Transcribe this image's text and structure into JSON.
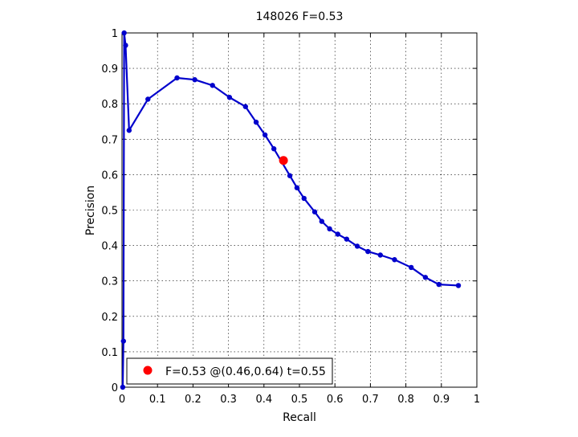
{
  "chart_data": {
    "type": "line",
    "title": "148026 F=0.53",
    "xlabel": "Recall",
    "ylabel": "Precision",
    "xlim": [
      0,
      1
    ],
    "ylim": [
      0,
      1
    ],
    "xticks": [
      0,
      0.1,
      0.2,
      0.3,
      0.4,
      0.5,
      0.6,
      0.7,
      0.8,
      0.9,
      1
    ],
    "yticks": [
      0,
      0.1,
      0.2,
      0.3,
      0.4,
      0.5,
      0.6,
      0.7,
      0.8,
      0.9,
      1
    ],
    "xtick_labels": [
      "0",
      "0.1",
      "0.2",
      "0.3",
      "0.4",
      "0.5",
      "0.6",
      "0.7",
      "0.8",
      "0.9",
      "1"
    ],
    "ytick_labels": [
      "0",
      "0.1",
      "0.2",
      "0.3",
      "0.4",
      "0.5",
      "0.6",
      "0.7",
      "0.8",
      "0.9",
      "1"
    ],
    "grid": true,
    "legend_position": "bottom-left",
    "line_color": "#0000cc",
    "marker_color": "#0000cc",
    "highlight_color": "#ff0000",
    "series": [
      {
        "points": [
          [
            0.002,
            0.0
          ],
          [
            0.004,
            0.13
          ],
          [
            0.006,
            1.0
          ],
          [
            0.01,
            0.965
          ],
          [
            0.02,
            0.725
          ],
          [
            0.073,
            0.813
          ],
          [
            0.155,
            0.873
          ],
          [
            0.205,
            0.868
          ],
          [
            0.255,
            0.852
          ],
          [
            0.303,
            0.818
          ],
          [
            0.348,
            0.792
          ],
          [
            0.378,
            0.748
          ],
          [
            0.403,
            0.712
          ],
          [
            0.428,
            0.673
          ],
          [
            0.473,
            0.597
          ],
          [
            0.493,
            0.563
          ],
          [
            0.513,
            0.533
          ],
          [
            0.543,
            0.495
          ],
          [
            0.563,
            0.468
          ],
          [
            0.585,
            0.447
          ],
          [
            0.608,
            0.432
          ],
          [
            0.633,
            0.418
          ],
          [
            0.663,
            0.398
          ],
          [
            0.693,
            0.383
          ],
          [
            0.728,
            0.373
          ],
          [
            0.768,
            0.36
          ],
          [
            0.815,
            0.338
          ],
          [
            0.855,
            0.31
          ],
          [
            0.893,
            0.29
          ],
          [
            0.948,
            0.287
          ]
        ]
      }
    ],
    "highlight_point": {
      "x": 0.455,
      "y": 0.64
    },
    "legend": {
      "label": "F=0.53 @(0.46,0.64) t=0.55"
    }
  }
}
